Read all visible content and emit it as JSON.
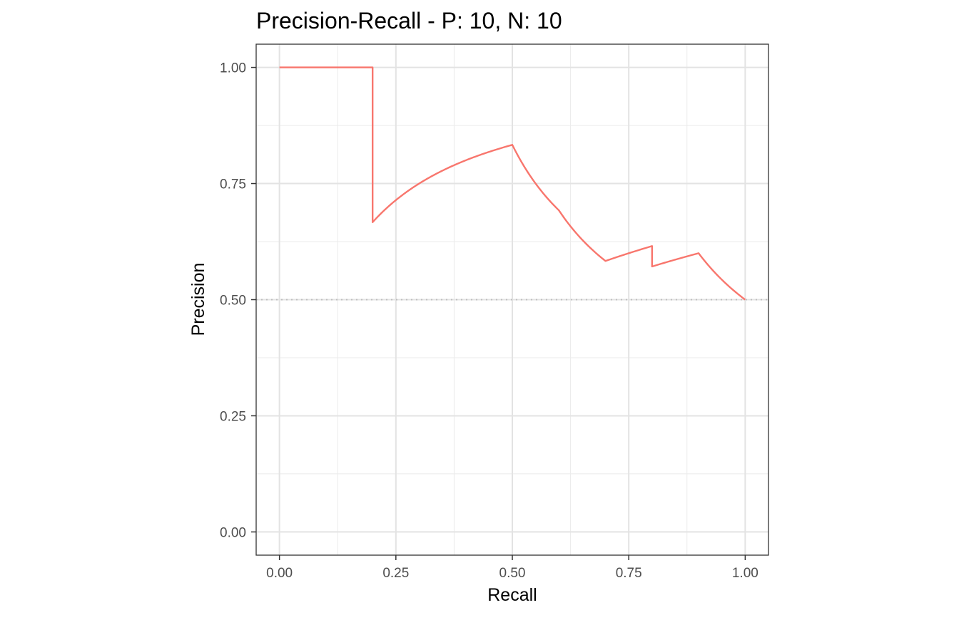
{
  "chart_data": {
    "type": "line",
    "title": "Precision-Recall - P: 10, N: 10",
    "xlabel": "Recall",
    "ylabel": "Precision",
    "xlim": [
      -0.05,
      1.05
    ],
    "ylim": [
      -0.05,
      1.05
    ],
    "xticks": [
      0.0,
      0.25,
      0.5,
      0.75,
      1.0
    ],
    "yticks": [
      0.0,
      0.25,
      0.5,
      0.75,
      1.0
    ],
    "xtick_labels": [
      "0.00",
      "0.25",
      "0.50",
      "0.75",
      "1.00"
    ],
    "ytick_labels": [
      "0.00",
      "0.25",
      "0.50",
      "0.75",
      "1.00"
    ],
    "grid": true,
    "baseline": {
      "y": 0.5,
      "style": "dotted",
      "color": "#bdbdbd"
    },
    "series": [
      {
        "color": "#f8766d",
        "x": [
          0.0,
          0.2,
          0.2,
          0.3,
          0.4,
          0.5,
          0.6,
          0.7,
          0.8,
          0.8,
          0.9,
          1.0
        ],
        "y": [
          1.0,
          1.0,
          0.6667,
          0.75,
          0.8,
          0.8333,
          0.6923,
          0.5833,
          0.6154,
          0.5714,
          0.6,
          0.5
        ]
      }
    ]
  }
}
